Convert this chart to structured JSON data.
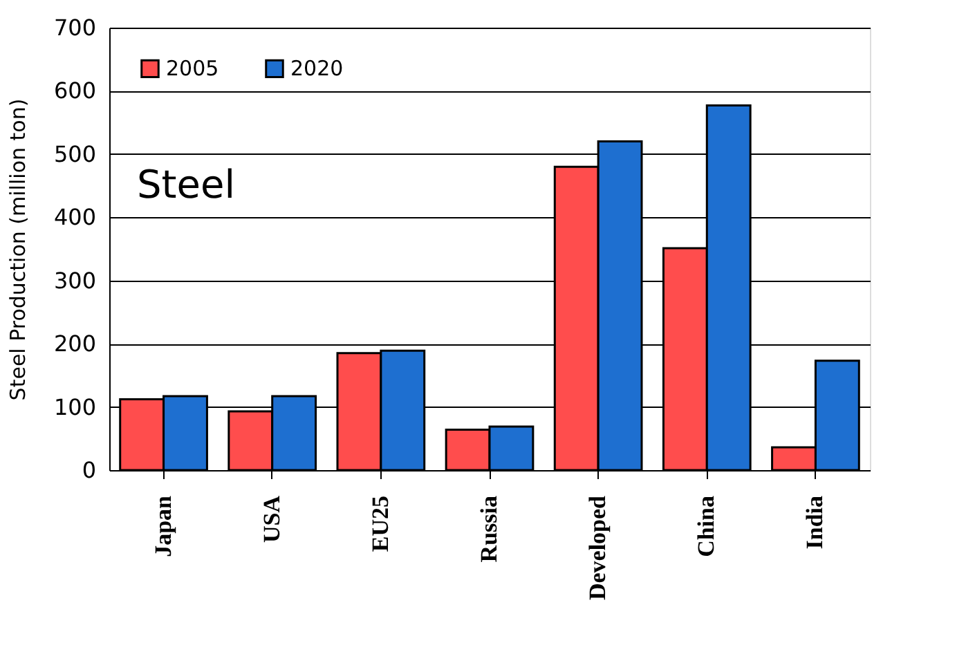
{
  "chart_data": {
    "type": "bar",
    "ylabel": "Steel Production (million ton)",
    "categories": [
      "Japan",
      "USA",
      "EU25",
      "Russia",
      "Developed",
      "China",
      "India"
    ],
    "series": [
      {
        "name": "2005",
        "color": "#ff4d4d",
        "values": [
          112,
          93,
          185,
          64,
          480,
          351,
          36
        ]
      },
      {
        "name": "2020",
        "color": "#1e6fd0",
        "values": [
          117,
          117,
          189,
          69,
          520,
          577,
          173
        ]
      }
    ],
    "ylim": [
      0,
      700
    ],
    "yticks": [
      0,
      100,
      200,
      300,
      400,
      500,
      600,
      700
    ],
    "grid": "y",
    "legend": "top left",
    "annotations": [
      "Steel"
    ]
  }
}
